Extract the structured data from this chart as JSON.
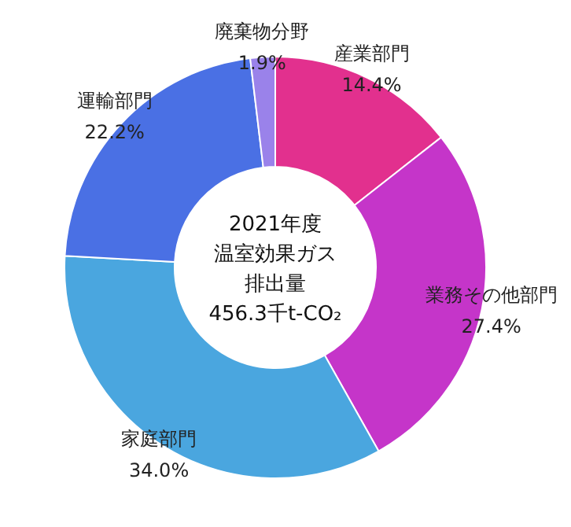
{
  "chart_data": {
    "type": "donut",
    "categories": [
      "産業部門",
      "業務その他部門",
      "家庭部門",
      "運輸部門",
      "廃棄物分野"
    ],
    "values": [
      14.4,
      27.4,
      34.0,
      22.2,
      1.9
    ],
    "colors": [
      "#e2308e",
      "#c535c9",
      "#4aa6df",
      "#4a70e4",
      "#9a82ea"
    ],
    "value_labels": [
      "14.4%",
      "27.4%",
      "34.0%",
      "22.2%",
      "1.9%"
    ],
    "annotations": [
      "2021年度",
      "温室効果ガス",
      "排出量",
      "456.3千t-CO₂"
    ]
  }
}
